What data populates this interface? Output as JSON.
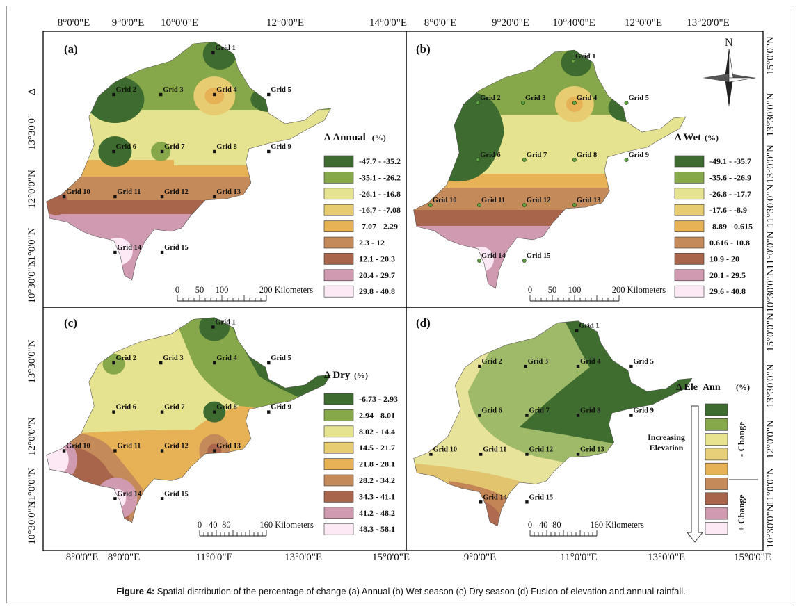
{
  "panels": [
    {
      "id": "a",
      "label": "(a)",
      "top_ticks": [
        "8°0'0\"E",
        "9°0'0\"E",
        "10°0'0\"E",
        "12°0'0\"E",
        "14°0'0\"E"
      ],
      "left_ticks": [
        "Δ",
        "13°30'0\"",
        "12°0'0\"N",
        "11°0'0\"N",
        "10°30'0\"N"
      ],
      "legend_title": "Δ Annual",
      "legend_unit": "(%)",
      "legend_classes": [
        "-47.7 - -35.2",
        "-35.1 - -26.2",
        "-26.1 - -16.8",
        "-16.7 - -7.08",
        "-7.07 - 2.29",
        "2.3 - 12",
        "12.1 - 20.3",
        "20.4 - 29.7",
        "29.8 - 40.8"
      ],
      "scale_labels": [
        "0",
        "50",
        "100",
        "200 Kilometers"
      ]
    },
    {
      "id": "b",
      "label": "(b)",
      "top_ticks": [
        "8°0'0\"E",
        "9°20'0\"E",
        "10°40'0\"E",
        "12°0'0\"E",
        "13°20'0\"E"
      ],
      "right_ticks": [
        "15°0'0\"N",
        "13°30'0\"N",
        "13°0'0\"N",
        "11°30'0\"N",
        "11°0'0\"N",
        "10°30'0\"N"
      ],
      "legend_title": "Δ Wet",
      "legend_unit": "(%)",
      "legend_classes": [
        "-49.1 - -35.7",
        "-35.6 - -26.9",
        "-26.8 - -17.7",
        "-17.6 - -8.9",
        "-8.89 - 0.615",
        "0.616 - 10.8",
        "10.9 - 20",
        "20.1 - 29.5",
        "29.6 - 40.8"
      ],
      "scale_labels": [
        "0",
        "50",
        "100",
        "200 Kilometers"
      ],
      "north_label": "N"
    },
    {
      "id": "c",
      "label": "(c)",
      "bottom_ticks": [
        "8°0'0\"E",
        "8°0'0\"E",
        "11°0'0\"E",
        "13°0'0\"E",
        "15°0'0\"E"
      ],
      "left_ticks": [
        "13°30'0\"N",
        "12°0'0\"N",
        "11°0'0\"N",
        "10°30'0\"N"
      ],
      "legend_title": "Δ Dry",
      "legend_unit": "(%)",
      "legend_classes": [
        "-6.73 - 2.93",
        "2.94 - 8.01",
        "8.02 - 14.4",
        "14.5 - 21.7",
        "21.8 - 28.1",
        "28.2 - 34.2",
        "34.3 - 41.1",
        "41.2 - 48.2",
        "48.3 - 58.1"
      ],
      "scale_labels": [
        "0",
        "40",
        "80",
        "160 Kilometers"
      ]
    },
    {
      "id": "d",
      "label": "(d)",
      "bottom_ticks": [
        "9°0'0\"E",
        "11°0'0\"E",
        "13°0'0\"E",
        "15°0'0\"E"
      ],
      "right_ticks": [
        "15°0'0\"N",
        "13°30'0\"N",
        "12°0'0\"N",
        "11°0'0\"N",
        "10°30'0\"N"
      ],
      "legend_title": "Δ Ele_Ann",
      "legend_unit": "(%)",
      "increasing_label_1": "Increasing",
      "increasing_label_2": "Elevation",
      "minus_change": "- Change",
      "plus_change": "+ Change",
      "scale_labels": [
        "0",
        "40",
        "80",
        "160 Kilometers"
      ]
    }
  ],
  "grid_labels": [
    "Grid 1",
    "Grid 2",
    "Grid 3",
    "Grid 4",
    "Grid 5",
    "Grid 6",
    "Grid 7",
    "Grid 8",
    "Grid 9",
    "Grid 10",
    "Grid 11",
    "Grid 12",
    "Grid 13",
    "Grid 14",
    "Grid 15"
  ],
  "colors": {
    "class_colors": [
      "#3e6b2f",
      "#86a84a",
      "#e5e38f",
      "#e8cc72",
      "#e7b156",
      "#c58a5a",
      "#a9654c",
      "#d09bb0",
      "#fde9f6"
    ],
    "frame": "#000000"
  },
  "caption": {
    "prefix": "Figure 4:",
    "text": " Spatial distribution of the percentage of change (a) Annual (b) Wet season (c) Dry season (d) Fusion of elevation and annual rainfall."
  }
}
